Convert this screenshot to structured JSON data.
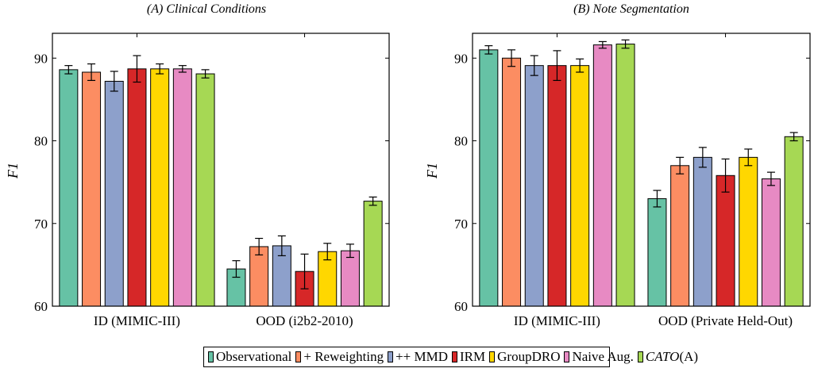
{
  "chart_data": [
    {
      "type": "bar",
      "title": "(A) Clinical Conditions",
      "ylabel": "F1",
      "ylim": [
        60,
        93
      ],
      "yticks": [
        60,
        70,
        80,
        90
      ],
      "categories": [
        "ID (MIMIC-III)",
        "OOD (i2b2-2010)"
      ],
      "series": [
        {
          "name": "Observational",
          "values": [
            88.6,
            64.5
          ],
          "errors": [
            0.5,
            1.0
          ]
        },
        {
          "name": "+ Reweighting",
          "values": [
            88.3,
            67.2
          ],
          "errors": [
            1.0,
            1.0
          ]
        },
        {
          "name": "++ MMD",
          "values": [
            87.2,
            67.3
          ],
          "errors": [
            1.2,
            1.2
          ]
        },
        {
          "name": "IRM",
          "values": [
            88.7,
            64.2
          ],
          "errors": [
            1.6,
            2.1
          ]
        },
        {
          "name": "GroupDRO",
          "values": [
            88.7,
            66.6
          ],
          "errors": [
            0.6,
            1.0
          ]
        },
        {
          "name": "Naive Aug.",
          "values": [
            88.7,
            66.7
          ],
          "errors": [
            0.4,
            0.8
          ]
        },
        {
          "name": "CATO (A)",
          "values": [
            88.1,
            72.7
          ],
          "errors": [
            0.5,
            0.5
          ]
        }
      ]
    },
    {
      "type": "bar",
      "title": "(B) Note Segmentation",
      "ylabel": "F1",
      "ylim": [
        60,
        93
      ],
      "yticks": [
        60,
        70,
        80,
        90
      ],
      "categories": [
        "ID (MIMIC-III)",
        "OOD (Private Held-Out)"
      ],
      "series": [
        {
          "name": "Observational",
          "values": [
            91.0,
            73.0
          ],
          "errors": [
            0.5,
            1.0
          ]
        },
        {
          "name": "+ Reweighting",
          "values": [
            90.0,
            77.0
          ],
          "errors": [
            1.0,
            1.0
          ]
        },
        {
          "name": "++ MMD",
          "values": [
            89.1,
            78.0
          ],
          "errors": [
            1.2,
            1.2
          ]
        },
        {
          "name": "IRM",
          "values": [
            89.1,
            75.8
          ],
          "errors": [
            1.8,
            2.0
          ]
        },
        {
          "name": "GroupDRO",
          "values": [
            89.1,
            78.0
          ],
          "errors": [
            0.8,
            1.0
          ]
        },
        {
          "name": "Naive Aug.",
          "values": [
            91.6,
            75.4
          ],
          "errors": [
            0.4,
            0.8
          ]
        },
        {
          "name": "CATO (A)",
          "values": [
            91.7,
            80.5
          ],
          "errors": [
            0.5,
            0.5
          ]
        }
      ]
    }
  ],
  "colors": [
    "#66c2a5",
    "#fc8d62",
    "#8da0cb",
    "#d62728",
    "#ffd700",
    "#e78ac3",
    "#a6d854"
  ],
  "legend": {
    "entries": [
      {
        "label": "Observational",
        "italic": false
      },
      {
        "label": "+ Reweighting",
        "italic": false
      },
      {
        "label": "++ MMD",
        "italic": false
      },
      {
        "label": "IRM",
        "italic": false
      },
      {
        "label": "GroupDRO",
        "italic": false
      },
      {
        "label": "Naive Aug.",
        "italic": false
      },
      {
        "label": "CATO",
        "italic": true,
        "suffix": " (A)"
      }
    ]
  }
}
